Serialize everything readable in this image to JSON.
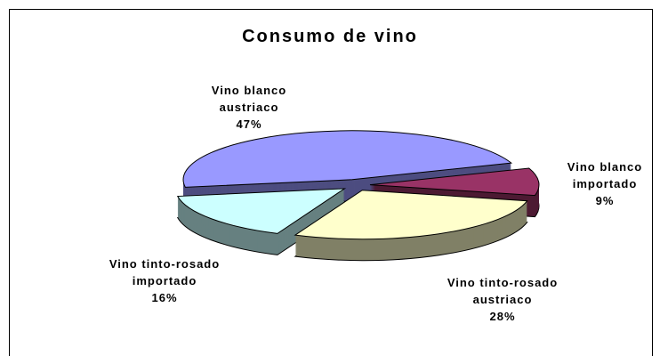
{
  "chart_data": {
    "type": "pie",
    "title": "Consumo de vino",
    "categories": [
      "Vino blanco austriaco",
      "Vino blanco importado",
      "Vino tinto-rosado austriaco",
      "Vino tinto-rosado importado"
    ],
    "values": [
      47,
      9,
      28,
      16
    ],
    "value_labels": [
      "47%",
      "9%",
      "28%",
      "16%"
    ],
    "colors": [
      "#9999ff",
      "#993366",
      "#ffffcc",
      "#ccffff"
    ]
  }
}
